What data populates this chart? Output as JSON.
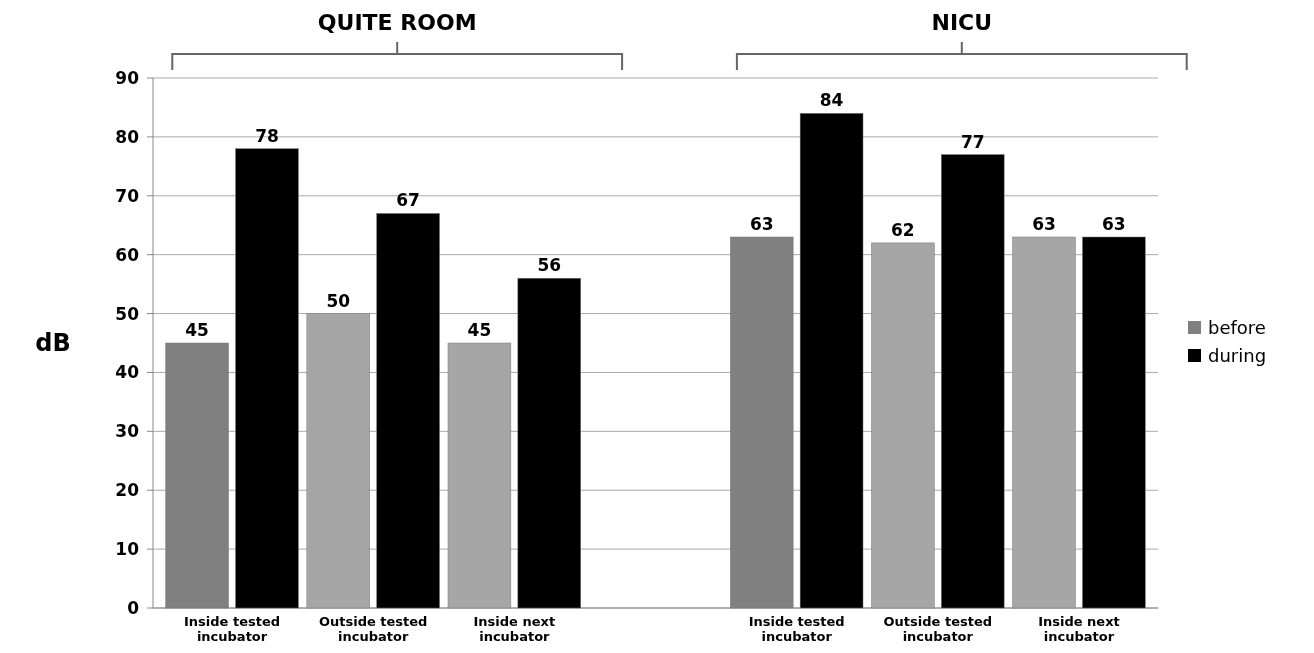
{
  "chart_data": {
    "type": "bar",
    "ylabel": "dB",
    "categories": [
      "Inside tested incubator",
      "Outside tested incubator",
      "Inside next incubator",
      null,
      "Inside tested incubator",
      "Outside tested incubator",
      "Inside next incubator"
    ],
    "series": [
      {
        "name": "before",
        "color": "#808080",
        "colors": [
          "#808080",
          "#a6a6a6",
          "#a6a6a6",
          null,
          "#808080",
          "#a6a6a6",
          "#a6a6a6"
        ],
        "values": [
          45,
          50,
          45,
          null,
          63,
          62,
          63
        ]
      },
      {
        "name": "during",
        "color": "#000000",
        "values": [
          78,
          67,
          56,
          null,
          84,
          77,
          63
        ]
      }
    ],
    "annotations": [
      "QUITE ROOM",
      "NICU"
    ],
    "ylim": [
      0,
      90
    ],
    "yticks": [
      0,
      10,
      20,
      30,
      40,
      50,
      60,
      70,
      80,
      90
    ],
    "grid": "y",
    "legend": "right",
    "data_labels": true
  }
}
